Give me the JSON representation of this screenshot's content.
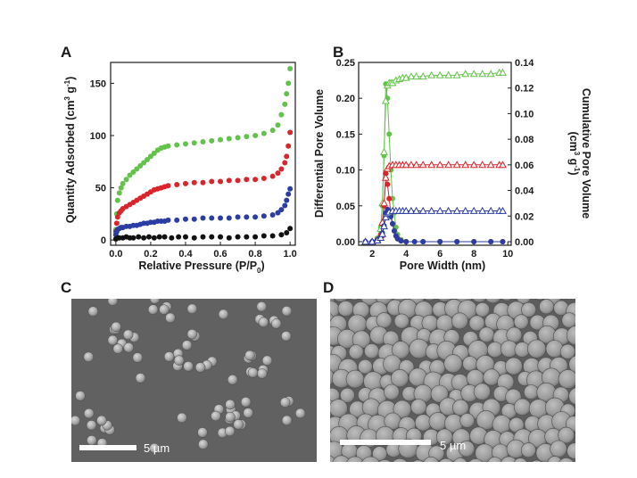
{
  "figure": {
    "panels": [
      {
        "letter": "A"
      },
      {
        "letter": "B"
      },
      {
        "letter": "C"
      },
      {
        "letter": "D"
      }
    ],
    "micrographs": [
      {
        "scale_bar_label": "5 µm"
      },
      {
        "scale_bar_label": "5 µm"
      }
    ]
  },
  "chart_data": [
    {
      "type": "scatter",
      "title": "",
      "xlabel": "Relative Pressure (P/P0)",
      "ylabel": "Quantity Adsorbed (cm3 g-1)",
      "xlim": [
        -0.03,
        1.03
      ],
      "ylim": [
        -5,
        170
      ],
      "x_ticks": [
        0.0,
        0.2,
        0.4,
        0.6,
        0.8,
        1.0
      ],
      "y_ticks": [
        0,
        50,
        100,
        150
      ],
      "x_tick_labels": [
        "0.0",
        "0.2",
        "0.4",
        "0.6",
        "0.8",
        "1.0"
      ],
      "y_tick_labels": [
        "0",
        "50",
        "100",
        "150"
      ],
      "grid": false,
      "series": [
        {
          "color": "#63c24a",
          "x": [
            0.0,
            0.005,
            0.01,
            0.02,
            0.03,
            0.04,
            0.06,
            0.08,
            0.1,
            0.12,
            0.14,
            0.16,
            0.18,
            0.2,
            0.22,
            0.24,
            0.26,
            0.28,
            0.3,
            0.35,
            0.4,
            0.45,
            0.5,
            0.55,
            0.6,
            0.65,
            0.7,
            0.75,
            0.8,
            0.85,
            0.9,
            0.93,
            0.95,
            0.97,
            0.98,
            0.99,
            1.0
          ],
          "y": [
            10,
            25,
            38,
            45,
            50,
            54,
            58,
            62,
            65,
            68,
            71,
            74,
            77,
            80,
            83,
            86,
            88,
            89,
            90,
            91,
            92,
            93,
            94,
            95,
            96,
            97,
            98,
            99,
            100,
            102,
            105,
            110,
            120,
            130,
            140,
            150,
            164
          ]
        },
        {
          "color": "#d9252b",
          "x": [
            0.0,
            0.005,
            0.01,
            0.02,
            0.03,
            0.04,
            0.06,
            0.08,
            0.1,
            0.12,
            0.14,
            0.16,
            0.18,
            0.2,
            0.22,
            0.24,
            0.26,
            0.28,
            0.3,
            0.35,
            0.4,
            0.45,
            0.5,
            0.55,
            0.6,
            0.65,
            0.7,
            0.75,
            0.8,
            0.85,
            0.9,
            0.93,
            0.95,
            0.97,
            0.98,
            0.99,
            1.0
          ],
          "y": [
            8,
            16,
            22,
            26,
            28,
            30,
            32,
            34,
            36,
            38,
            40,
            42,
            44,
            46,
            48,
            49,
            50,
            51,
            52,
            53,
            54,
            55,
            55,
            56,
            56,
            57,
            57,
            58,
            58,
            59,
            61,
            64,
            68,
            74,
            80,
            90,
            103
          ]
        },
        {
          "color": "#2b3da3",
          "x": [
            0.0,
            0.005,
            0.01,
            0.02,
            0.03,
            0.04,
            0.06,
            0.08,
            0.1,
            0.12,
            0.14,
            0.16,
            0.18,
            0.2,
            0.22,
            0.24,
            0.26,
            0.28,
            0.3,
            0.35,
            0.4,
            0.45,
            0.5,
            0.55,
            0.6,
            0.65,
            0.7,
            0.75,
            0.8,
            0.85,
            0.9,
            0.93,
            0.95,
            0.97,
            0.98,
            0.99,
            1.0
          ],
          "y": [
            5,
            8,
            10,
            11,
            12,
            12,
            13,
            13,
            14,
            14,
            15,
            16,
            16,
            17,
            17,
            18,
            18,
            18,
            19,
            19,
            20,
            20,
            21,
            21,
            21,
            21,
            22,
            22,
            22,
            23,
            24,
            26,
            29,
            33,
            38,
            44,
            49
          ]
        },
        {
          "color": "#111111",
          "x": [
            0.0,
            0.01,
            0.02,
            0.04,
            0.06,
            0.08,
            0.1,
            0.13,
            0.16,
            0.19,
            0.22,
            0.25,
            0.28,
            0.32,
            0.36,
            0.4,
            0.45,
            0.5,
            0.55,
            0.6,
            0.65,
            0.7,
            0.75,
            0.8,
            0.85,
            0.9,
            0.95,
            0.98,
            1.0
          ],
          "y": [
            1,
            2,
            2,
            2,
            3,
            2,
            2,
            3,
            2,
            3,
            2,
            3,
            3,
            2,
            3,
            3,
            2,
            3,
            3,
            3,
            2,
            3,
            3,
            3,
            4,
            4,
            5,
            7,
            11
          ]
        }
      ]
    },
    {
      "type": "line",
      "title": "",
      "xlabel": "Pore Width (nm)",
      "ylabel": "Differential Pore Volume",
      "y2label": "Cumulative Pore Volume (cm3 g-1)",
      "xlim": [
        1.2,
        10.2
      ],
      "ylim": [
        -0.005,
        0.25
      ],
      "y2lim": [
        -0.0028,
        0.14
      ],
      "x_ticks": [
        2,
        4,
        6,
        8,
        10
      ],
      "y_ticks": [
        0.0,
        0.05,
        0.1,
        0.15,
        0.2,
        0.25
      ],
      "y2_ticks": [
        0.0,
        0.02,
        0.04,
        0.06,
        0.08,
        0.1,
        0.12,
        0.14
      ],
      "x_tick_labels": [
        "2",
        "4",
        "6",
        "8",
        "10"
      ],
      "y_tick_labels": [
        "0.00",
        "0.05",
        "0.10",
        "0.15",
        "0.20",
        "0.25"
      ],
      "y2_tick_labels": [
        "0.00",
        "0.02",
        "0.04",
        "0.06",
        "0.08",
        "0.10",
        "0.12",
        "0.14"
      ],
      "grid": false,
      "series": [
        {
          "axis": "y",
          "marker": "circle",
          "color": "#63c24a",
          "x": [
            1.6,
            2.0,
            2.3,
            2.5,
            2.6,
            2.7,
            2.8,
            2.9,
            3.0,
            3.1,
            3.2,
            3.3,
            3.4,
            3.5,
            3.7,
            4.0,
            4.5,
            5.0,
            6.0,
            7.0,
            8.0,
            9.0,
            9.7
          ],
          "y": [
            0.0,
            0.0,
            0.005,
            0.02,
            0.05,
            0.12,
            0.22,
            0.2,
            0.15,
            0.1,
            0.06,
            0.04,
            0.02,
            0.01,
            0.003,
            0.0,
            0.0,
            0.0,
            0.0,
            0.0,
            0.0,
            0.0,
            0.0
          ]
        },
        {
          "axis": "y2",
          "marker": "triangle",
          "color": "#63c24a",
          "x": [
            1.6,
            2.0,
            2.3,
            2.5,
            2.6,
            2.7,
            2.8,
            2.9,
            3.0,
            3.1,
            3.2,
            3.4,
            3.6,
            3.8,
            4.0,
            4.3,
            4.6,
            5.0,
            5.5,
            6.0,
            6.5,
            7.0,
            7.5,
            8.0,
            8.5,
            9.0,
            9.5,
            9.7
          ],
          "y": [
            0.0,
            0.0,
            0.002,
            0.01,
            0.03,
            0.07,
            0.11,
            0.122,
            0.124,
            0.124,
            0.124,
            0.126,
            0.127,
            0.128,
            0.128,
            0.129,
            0.129,
            0.129,
            0.13,
            0.13,
            0.13,
            0.13,
            0.131,
            0.131,
            0.131,
            0.131,
            0.132,
            0.132
          ]
        },
        {
          "axis": "y",
          "marker": "circle",
          "color": "#d9252b",
          "x": [
            1.6,
            2.0,
            2.3,
            2.5,
            2.6,
            2.7,
            2.8,
            2.9,
            3.0,
            3.1,
            3.2,
            3.3,
            3.4,
            3.5,
            3.7,
            4.0,
            5.0,
            6.0,
            7.0,
            8.0,
            9.0,
            9.7
          ],
          "y": [
            0.0,
            0.0,
            0.003,
            0.01,
            0.025,
            0.05,
            0.095,
            0.08,
            0.06,
            0.04,
            0.025,
            0.015,
            0.008,
            0.004,
            0.001,
            0.0,
            0.0,
            0.0,
            0.0,
            0.0,
            0.0,
            0.0
          ]
        },
        {
          "axis": "y2",
          "marker": "triangle",
          "color": "#d9252b",
          "x": [
            1.6,
            2.0,
            2.3,
            2.5,
            2.6,
            2.7,
            2.8,
            2.9,
            3.0,
            3.2,
            3.4,
            3.6,
            3.8,
            4.0,
            4.3,
            4.6,
            5.0,
            5.5,
            6.0,
            6.5,
            7.0,
            7.5,
            8.0,
            8.5,
            9.0,
            9.5,
            9.7
          ],
          "y": [
            0.0,
            0.0,
            0.001,
            0.005,
            0.015,
            0.03,
            0.05,
            0.057,
            0.059,
            0.06,
            0.06,
            0.06,
            0.06,
            0.06,
            0.06,
            0.06,
            0.06,
            0.06,
            0.06,
            0.06,
            0.06,
            0.06,
            0.06,
            0.06,
            0.06,
            0.06,
            0.06
          ]
        },
        {
          "axis": "y",
          "marker": "circle",
          "color": "#2b3da3",
          "x": [
            1.6,
            2.0,
            2.3,
            2.5,
            2.6,
            2.7,
            2.8,
            2.9,
            3.0,
            3.1,
            3.2,
            3.3,
            3.4,
            3.5,
            3.7,
            4.0,
            4.5,
            5.0,
            6.0,
            7.0,
            8.0,
            9.0,
            9.7
          ],
          "y": [
            0.0,
            0.0,
            0.002,
            0.006,
            0.012,
            0.022,
            0.04,
            0.045,
            0.042,
            0.035,
            0.025,
            0.015,
            0.008,
            0.004,
            0.001,
            0.0,
            0.0,
            0.0,
            0.0,
            0.0,
            0.0,
            0.0,
            0.0
          ]
        },
        {
          "axis": "y2",
          "marker": "triangle",
          "color": "#2b3da3",
          "x": [
            1.6,
            2.0,
            2.3,
            2.5,
            2.6,
            2.7,
            2.8,
            2.9,
            3.0,
            3.2,
            3.4,
            3.6,
            3.8,
            4.0,
            4.3,
            4.6,
            5.0,
            5.5,
            6.0,
            6.5,
            7.0,
            7.5,
            8.0,
            8.5,
            9.0,
            9.5,
            9.7
          ],
          "y": [
            0.0,
            0.0,
            0.001,
            0.003,
            0.006,
            0.012,
            0.019,
            0.022,
            0.023,
            0.024,
            0.024,
            0.024,
            0.024,
            0.024,
            0.024,
            0.024,
            0.024,
            0.024,
            0.024,
            0.024,
            0.024,
            0.024,
            0.024,
            0.024,
            0.024,
            0.024,
            0.024
          ]
        }
      ]
    }
  ]
}
